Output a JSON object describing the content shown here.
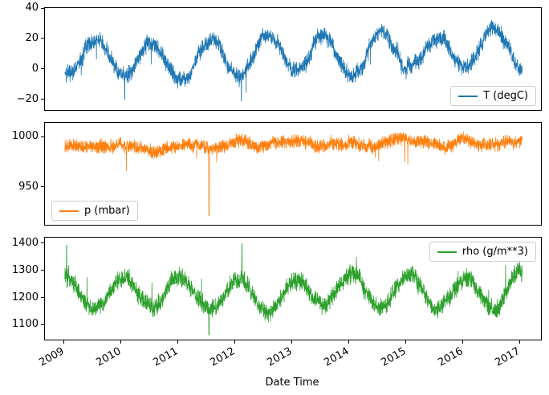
{
  "figure": {
    "xlabel": "Date Time"
  },
  "chart_data": {
    "type": "line",
    "title": "",
    "xlabel": "Date Time",
    "grid": false,
    "xlim": [
      2008.67,
      2017.38
    ],
    "x_ticks": [
      {
        "value": 2009,
        "label": "2009"
      },
      {
        "value": 2010,
        "label": "2010"
      },
      {
        "value": 2011,
        "label": "2011"
      },
      {
        "value": 2012,
        "label": "2012"
      },
      {
        "value": 2013,
        "label": "2013"
      },
      {
        "value": 2014,
        "label": "2014"
      },
      {
        "value": 2015,
        "label": "2015"
      },
      {
        "value": 2016,
        "label": "2016"
      },
      {
        "value": 2017,
        "label": "2017"
      }
    ],
    "panels": [
      {
        "name": "temperature",
        "legend": "T (degC)",
        "legend_position": "lower right",
        "color": "#1f77b4",
        "ylim": [
          -27,
          40
        ],
        "y_ticks": [
          {
            "value": -20,
            "label": "−20"
          },
          {
            "value": 0,
            "label": "0"
          },
          {
            "value": 20,
            "label": "20"
          },
          {
            "value": 40,
            "label": "40"
          }
        ],
        "x_range": [
          2009.02,
          2017.05
        ],
        "seed": 7,
        "generator": {
          "baseline": 10.5,
          "seasonal_amplitude": 12.5,
          "peak_fraction": 0.56,
          "noise": 6.5,
          "wander": 1.2,
          "spike_probability": 0.004,
          "spike_magnitude": -14,
          "forced_events": [
            {
              "x": 2010.07,
              "value": -20
            },
            {
              "x": 2012.12,
              "value": -21
            }
          ]
        }
      },
      {
        "name": "pressure",
        "legend": "p (mbar)",
        "legend_position": "lower left",
        "color": "#ff7f0e",
        "ylim": [
          912,
          1014
        ],
        "y_ticks": [
          {
            "value": 950,
            "label": "950"
          },
          {
            "value": 1000,
            "label": "1000"
          }
        ],
        "x_range": [
          2009.02,
          2017.05
        ],
        "seed": 13,
        "generator": {
          "baseline": 990,
          "seasonal_amplitude": 2.5,
          "peak_fraction": 0.06,
          "noise": 8,
          "wander": 1.0,
          "spike_probability": 0.005,
          "spike_magnitude": -30,
          "forced_events": [
            {
              "x": 2011.55,
              "value": 921
            }
          ]
        }
      },
      {
        "name": "rho",
        "legend": "rho (g/m**3)",
        "legend_position": "upper right",
        "color": "#2ca02c",
        "ylim": [
          1045,
          1420
        ],
        "y_ticks": [
          {
            "value": 1100,
            "label": "1100"
          },
          {
            "value": 1200,
            "label": "1200"
          },
          {
            "value": 1300,
            "label": "1300"
          },
          {
            "value": 1400,
            "label": "1400"
          }
        ],
        "x_range": [
          2009.02,
          2017.05
        ],
        "seed": 21,
        "generator": {
          "baseline": 1222,
          "seasonal_amplitude": 58,
          "peak_fraction": 0.06,
          "noise": 40,
          "wander": 4,
          "spike_probability": 0.004,
          "spike_magnitude": 90,
          "forced_events": [
            {
              "x": 2009.05,
              "value": 1392
            },
            {
              "x": 2011.55,
              "value": 1062
            },
            {
              "x": 2012.13,
              "value": 1398
            }
          ]
        }
      }
    ]
  }
}
